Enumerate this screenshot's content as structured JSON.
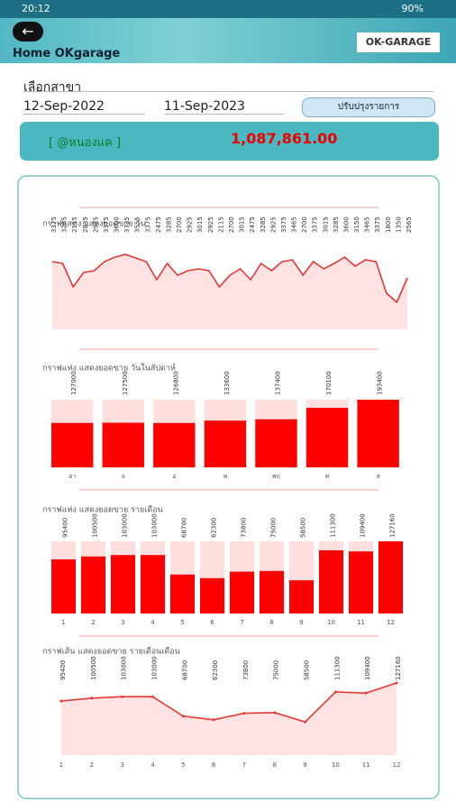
{
  "status": {
    "time": "20:12",
    "battery": "90%"
  },
  "header": {
    "title": "Home OKgarage",
    "logo": "OK-GARAGE"
  },
  "filter": {
    "branch_label": "เลือกสาขา",
    "date_from": "12-Sep-2022",
    "date_to": "11-Sep-2023",
    "button": "ปรับปรุงรายการ"
  },
  "summary": {
    "label": "[ @หนองแค ]",
    "total": "1,087,861.00"
  },
  "chart_data": [
    {
      "type": "line",
      "title": "กราฟแสดง แสดงยอดขาย วัน",
      "color": "#e53935",
      "ylim": [
        0,
        4500
      ],
      "values": [
        3375,
        3285,
        2115,
        2835,
        2925,
        3375,
        3600,
        3735,
        3555,
        3375,
        2475,
        3285,
        2700,
        2925,
        3015,
        2925,
        2115,
        2700,
        3015,
        2475,
        3285,
        2925,
        3375,
        3465,
        2700,
        3375,
        3015,
        3285,
        3600,
        3150,
        3465,
        3375,
        1800,
        1350,
        2565
      ]
    },
    {
      "type": "bar",
      "title": "กราฟแท่ง แสดงยอดขาย วันในสัปดาห์",
      "color": "#ff0000",
      "ylim": [
        0,
        193400
      ],
      "categories": [
        "อา",
        "จ",
        "อ",
        "พ",
        "พฤ",
        "ศ",
        "ส"
      ],
      "values": [
        127000,
        127500,
        126800,
        133600,
        137400,
        170100,
        193400
      ]
    },
    {
      "type": "bar",
      "title": "กราฟแท่ง แสดงยอดขาย รายเดือน",
      "color": "#ff0000",
      "ylim": [
        0,
        127160
      ],
      "categories": [
        "1",
        "2",
        "3",
        "4",
        "5",
        "6",
        "7",
        "8",
        "9",
        "10",
        "11",
        "12"
      ],
      "values": [
        95400,
        100500,
        103000,
        103000,
        68700,
        62300,
        73800,
        75000,
        58500,
        111300,
        109400,
        127160
      ]
    },
    {
      "type": "line",
      "title": "กราฟเส้น แสดงยอดขาย รายเดือนเดือน",
      "color": "#e53935",
      "ylim": [
        0,
        127160
      ],
      "categories": [
        "1",
        "2",
        "3",
        "4",
        "5",
        "6",
        "7",
        "8",
        "9",
        "10",
        "11",
        "12"
      ],
      "values": [
        95400,
        100500,
        103000,
        103000,
        68700,
        62300,
        73800,
        75000,
        58500,
        111300,
        109400,
        127160
      ]
    }
  ]
}
